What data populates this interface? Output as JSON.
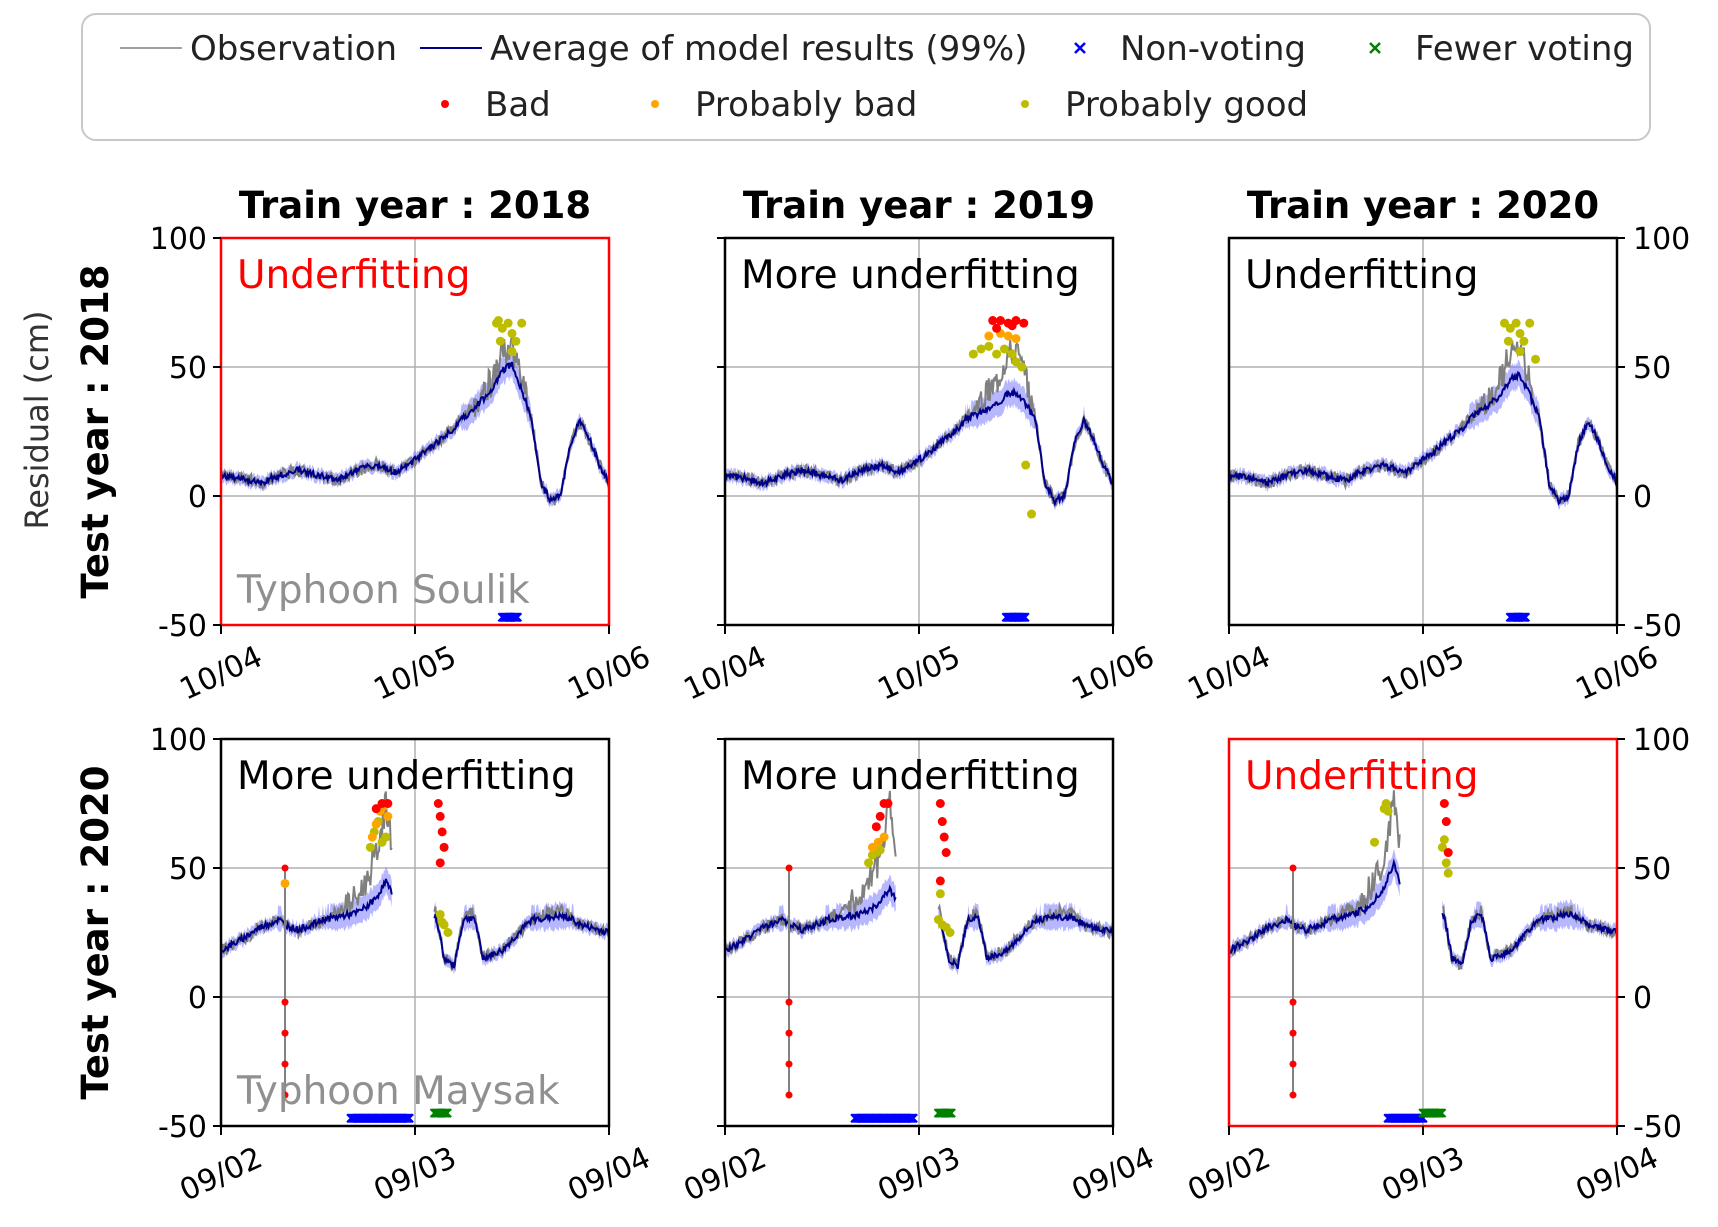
{
  "chart_data": {
    "type": "line",
    "ylabel": "Residual (cm)",
    "ylim": [
      -50,
      100
    ],
    "yticks": [
      -50,
      0,
      50,
      100
    ],
    "grid": true,
    "legend": {
      "position": "top-center",
      "entries": [
        {
          "label": "Observation",
          "kind": "line",
          "color": "#808080"
        },
        {
          "label": "Average of model results (99%)",
          "kind": "line",
          "color": "#00008b"
        },
        {
          "label": "Non-voting",
          "kind": "x",
          "color": "#0000ff"
        },
        {
          "label": "Fewer voting",
          "kind": "x",
          "color": "#008000"
        },
        {
          "label": "Bad",
          "kind": "dot",
          "color": "#ff0000"
        },
        {
          "label": "Probably bad",
          "kind": "dot",
          "color": "#ffa500"
        },
        {
          "label": "Probably good",
          "kind": "dot",
          "color": "#bdbd00"
        }
      ]
    },
    "columns": [
      "Train year : 2018",
      "Train year : 2019",
      "Train year : 2020"
    ],
    "rows": [
      {
        "label": "Test year : 2018",
        "event": "Typhoon Soulik",
        "xticks": [
          "10/04",
          "10/05",
          "10/06"
        ],
        "obs": [
          [
            0,
            8
          ],
          [
            0.1,
            7
          ],
          [
            0.2,
            5
          ],
          [
            0.3,
            8
          ],
          [
            0.4,
            10
          ],
          [
            0.5,
            8
          ],
          [
            0.6,
            6
          ],
          [
            0.7,
            10
          ],
          [
            0.8,
            12
          ],
          [
            0.9,
            9
          ],
          [
            1.0,
            14
          ],
          [
            1.1,
            20
          ],
          [
            1.2,
            26
          ],
          [
            1.3,
            35
          ],
          [
            1.4,
            45
          ],
          [
            1.45,
            55
          ],
          [
            1.5,
            58
          ],
          [
            1.55,
            45
          ],
          [
            1.6,
            30
          ],
          [
            1.65,
            5
          ],
          [
            1.7,
            -2
          ],
          [
            1.75,
            0
          ],
          [
            1.8,
            20
          ],
          [
            1.85,
            29
          ],
          [
            1.9,
            22
          ],
          [
            1.95,
            12
          ],
          [
            2.0,
            5
          ]
        ],
        "panels": [
          {
            "annotation": "Underfitting",
            "highlight": true,
            "peak": 51,
            "markers": {
              "good": [
                [
                  1.42,
                  67
                ],
                [
                  1.45,
                  65
                ],
                [
                  1.48,
                  67
                ],
                [
                  1.5,
                  63
                ],
                [
                  1.52,
                  60
                ],
                [
                  1.55,
                  67
                ],
                [
                  1.44,
                  60
                ],
                [
                  1.5,
                  56
                ],
                [
                  1.43,
                  68
                ]
              ],
              "probably_bad": [],
              "bad": []
            },
            "nonvoting": [
              [
                1.45,
                1.53
              ]
            ],
            "fewer": []
          },
          {
            "annotation": "More underfitting",
            "highlight": false,
            "peak": 40,
            "markers": {
              "good": [
                [
                  1.28,
                  55
                ],
                [
                  1.32,
                  57
                ],
                [
                  1.36,
                  58
                ],
                [
                  1.4,
                  55
                ],
                [
                  1.44,
                  57
                ],
                [
                  1.48,
                  55
                ],
                [
                  1.5,
                  52
                ],
                [
                  1.53,
                  50
                ],
                [
                  1.55,
                  12
                ],
                [
                  1.58,
                  -7
                ]
              ],
              "probably_bad": [
                [
                  1.36,
                  62
                ],
                [
                  1.42,
                  63
                ],
                [
                  1.46,
                  62
                ],
                [
                  1.5,
                  61
                ]
              ],
              "bad": [
                [
                  1.38,
                  68
                ],
                [
                  1.42,
                  68
                ],
                [
                  1.46,
                  67
                ],
                [
                  1.5,
                  68
                ],
                [
                  1.54,
                  67
                ],
                [
                  1.4,
                  65
                ],
                [
                  1.48,
                  66
                ]
              ]
            },
            "nonvoting": [
              [
                1.45,
                1.55
              ]
            ],
            "fewer": []
          },
          {
            "annotation": "Underfitting",
            "highlight": false,
            "peak": 47,
            "markers": {
              "good": [
                [
                  1.42,
                  67
                ],
                [
                  1.45,
                  65
                ],
                [
                  1.48,
                  67
                ],
                [
                  1.5,
                  63
                ],
                [
                  1.52,
                  60
                ],
                [
                  1.55,
                  67
                ],
                [
                  1.44,
                  60
                ],
                [
                  1.5,
                  56
                ],
                [
                  1.58,
                  53
                ]
              ],
              "probably_bad": [],
              "bad": []
            },
            "nonvoting": [
              [
                1.45,
                1.53
              ]
            ],
            "fewer": []
          }
        ]
      },
      {
        "label": "Test year : 2020",
        "event": "Typhoon Maysak",
        "xticks": [
          "09/02",
          "09/03",
          "09/04"
        ],
        "obs": [
          [
            0,
            18
          ],
          [
            0.1,
            22
          ],
          [
            0.2,
            27
          ],
          [
            0.3,
            30
          ],
          [
            0.33,
            28
          ],
          [
            0.4,
            26
          ],
          [
            0.5,
            29
          ],
          [
            0.6,
            33
          ],
          [
            0.7,
            38
          ],
          [
            0.75,
            45
          ],
          [
            0.8,
            55
          ],
          [
            0.85,
            75
          ],
          [
            0.88,
            60
          ],
          [
            1.1,
            35
          ],
          [
            1.15,
            15
          ],
          [
            1.2,
            12
          ],
          [
            1.25,
            30
          ],
          [
            1.3,
            33
          ],
          [
            1.35,
            15
          ],
          [
            1.45,
            18
          ],
          [
            1.6,
            30
          ],
          [
            1.75,
            34
          ],
          [
            1.85,
            28
          ],
          [
            2.0,
            25
          ]
        ],
        "gap": [
          0.88,
          1.1
        ],
        "spike": {
          "x": 0.33,
          "points": [
            50,
            -2,
            -14,
            -26,
            -38
          ]
        },
        "panels": [
          {
            "annotation": "More underfitting",
            "highlight": false,
            "peak": 45,
            "markers": {
              "good": [
                [
                  0.77,
                  58
                ],
                [
                  0.79,
                  64
                ],
                [
                  0.81,
                  68
                ],
                [
                  0.83,
                  60
                ],
                [
                  0.85,
                  62
                ],
                [
                  1.13,
                  32
                ],
                [
                  1.15,
                  28
                ],
                [
                  1.17,
                  25
                ],
                [
                  1.14,
                  29
                ]
              ],
              "probably_bad": [
                [
                  0.78,
                  62
                ],
                [
                  0.8,
                  67
                ],
                [
                  0.82,
                  72
                ],
                [
                  0.84,
                  74
                ],
                [
                  0.86,
                  70
                ],
                [
                  0.33,
                  44
                ]
              ],
              "bad": [
                [
                  0.8,
                  73
                ],
                [
                  0.83,
                  75
                ],
                [
                  0.86,
                  75
                ],
                [
                  1.12,
                  75
                ],
                [
                  1.13,
                  70
                ],
                [
                  1.14,
                  64
                ],
                [
                  1.15,
                  58
                ],
                [
                  1.13,
                  52
                ]
              ]
            },
            "nonvoting": [
              [
                0.67,
                0.97
              ]
            ],
            "fewer": [
              [
                1.1,
                1.17
              ]
            ]
          },
          {
            "annotation": "More underfitting",
            "highlight": false,
            "peak": 42,
            "markers": {
              "good": [
                [
                  0.74,
                  52
                ],
                [
                  0.76,
                  55
                ],
                [
                  0.78,
                  56
                ],
                [
                  0.8,
                  57
                ],
                [
                  1.1,
                  30
                ],
                [
                  1.12,
                  28
                ],
                [
                  1.14,
                  27
                ],
                [
                  1.16,
                  25
                ],
                [
                  1.11,
                  40
                ]
              ],
              "probably_bad": [
                [
                  0.76,
                  58
                ],
                [
                  0.79,
                  60
                ],
                [
                  0.82,
                  62
                ]
              ],
              "bad": [
                [
                  0.78,
                  66
                ],
                [
                  0.8,
                  70
                ],
                [
                  0.82,
                  75
                ],
                [
                  0.84,
                  75
                ],
                [
                  1.11,
                  75
                ],
                [
                  1.12,
                  68
                ],
                [
                  1.13,
                  62
                ],
                [
                  1.14,
                  56
                ],
                [
                  1.11,
                  45
                ]
              ]
            },
            "nonvoting": [
              [
                0.67,
                0.97
              ]
            ],
            "fewer": [
              [
                1.1,
                1.17
              ]
            ]
          },
          {
            "annotation": "Underfitting",
            "highlight": true,
            "peak": 52,
            "markers": {
              "good": [
                [
                  0.75,
                  60
                ],
                [
                  0.8,
                  73
                ],
                [
                  0.81,
                  75
                ],
                [
                  0.82,
                  72
                ],
                [
                  1.1,
                  58
                ],
                [
                  1.12,
                  52
                ],
                [
                  1.13,
                  48
                ],
                [
                  1.11,
                  61
                ]
              ],
              "probably_bad": [],
              "bad": [
                [
                  1.11,
                  75
                ],
                [
                  1.12,
                  68
                ],
                [
                  1.13,
                  56
                ]
              ]
            },
            "nonvoting": [
              [
                0.82,
                1.0
              ]
            ],
            "fewer": [
              [
                1.0,
                1.1
              ]
            ]
          }
        ]
      }
    ]
  }
}
